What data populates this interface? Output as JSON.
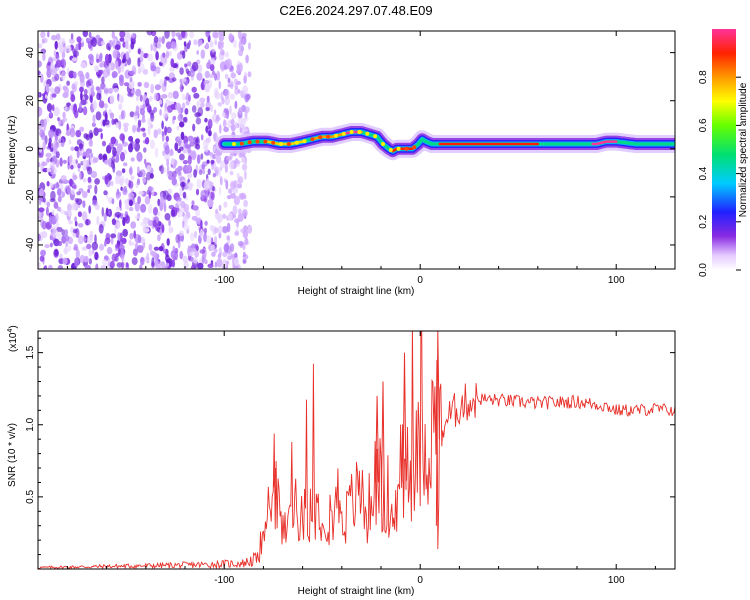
{
  "title": "C2E6.2024.297.07.48.E09",
  "chart_data": [
    {
      "type": "heatmap",
      "xlabel": "Height of straight line (km)",
      "ylabel": "Frequency (Hz)",
      "xlim": [
        -195,
        130
      ],
      "ylim": [
        -50,
        49
      ],
      "xticks": [
        -100,
        0,
        100
      ],
      "xtick_labels": [
        "-100",
        "0",
        "100"
      ],
      "yticks": [
        -40,
        -20,
        0,
        20,
        40
      ],
      "ytick_labels": [
        "-40",
        "-20",
        "0",
        "20",
        "40"
      ],
      "noise_region_x": [
        -195,
        -95
      ],
      "ridge_frequency": {
        "x": [
          -98,
          -92,
          -85,
          -78,
          -72,
          -66,
          -60,
          -55,
          -50,
          -45,
          -40,
          -35,
          -30,
          -26,
          -22,
          -19,
          -16,
          -14,
          -12,
          -8,
          -4,
          -1,
          1,
          3,
          6,
          10,
          20,
          40,
          60,
          80,
          90,
          95,
          100,
          110,
          120,
          130
        ],
        "y": [
          2,
          2,
          3,
          3,
          2,
          2,
          3,
          4,
          5,
          5,
          6,
          7,
          7,
          6,
          5,
          2,
          0,
          -1,
          0,
          0,
          0,
          2,
          4,
          3,
          2,
          2,
          2,
          2,
          2,
          2,
          2,
          3,
          3,
          2,
          2,
          2
        ]
      },
      "colorbar": {
        "label": "Normalized spectral amplitude",
        "range": [
          0,
          1
        ],
        "ticks": [
          0.0,
          0.2,
          0.4,
          0.6,
          0.8
        ],
        "tick_labels": [
          "0.0",
          "0.2",
          "0.4",
          "0.6",
          "0.8"
        ]
      }
    },
    {
      "type": "line",
      "xlabel": "Height of straight line (km)",
      "ylabel": "SNR (10 * v/v)",
      "y_multiplier_label": "(x10",
      "y_multiplier_exponent": "4",
      "y_multiplier_close": ")",
      "xlim": [
        -195,
        130
      ],
      "ylim": [
        0,
        16500
      ],
      "xticks": [
        -100,
        0,
        100
      ],
      "xtick_labels": [
        "-100",
        "0",
        "100"
      ],
      "yticks": [
        5000,
        10000,
        15000
      ],
      "ytick_labels": [
        "0.5",
        "1.0",
        "1.5"
      ],
      "color": "#e8302a",
      "series": [
        {
          "x": [
            -195,
            -150,
            -110,
            -90,
            -82,
            -78,
            -75,
            -72,
            -70,
            -66,
            -63,
            -60,
            -55,
            -50,
            -45,
            -42,
            -38,
            -35,
            -30,
            -27,
            -24,
            -20,
            -16,
            -14,
            -12,
            -10,
            -8,
            -6,
            -4,
            -2,
            0,
            2,
            4,
            6,
            8,
            9,
            10,
            11,
            12,
            14,
            18,
            22,
            26,
            30,
            40,
            60,
            80,
            90,
            95,
            100,
            110,
            120,
            130
          ],
          "y": [
            100,
            200,
            300,
            400,
            800,
            3500,
            6500,
            4000,
            2500,
            3500,
            5000,
            3000,
            4500,
            4000,
            3500,
            5000,
            3500,
            4500,
            5500,
            3500,
            6000,
            6000,
            2000,
            3500,
            4000,
            8000,
            6000,
            5000,
            7500,
            7500,
            8000,
            8500,
            9000,
            9500,
            10500,
            3000,
            9000,
            9500,
            10000,
            10500,
            11000,
            11500,
            11600,
            11800,
            11700,
            11500,
            11600,
            11400,
            11300,
            11000,
            11000,
            11100,
            11000
          ],
          "spikes": [
            {
              "x": -8,
              "y": 15000
            },
            {
              "x": 9,
              "y": 16500
            },
            {
              "x": -19,
              "y": 13000
            },
            {
              "x": -22,
              "y": 12000
            },
            {
              "x": -74,
              "y": 7000
            }
          ]
        }
      ]
    }
  ]
}
